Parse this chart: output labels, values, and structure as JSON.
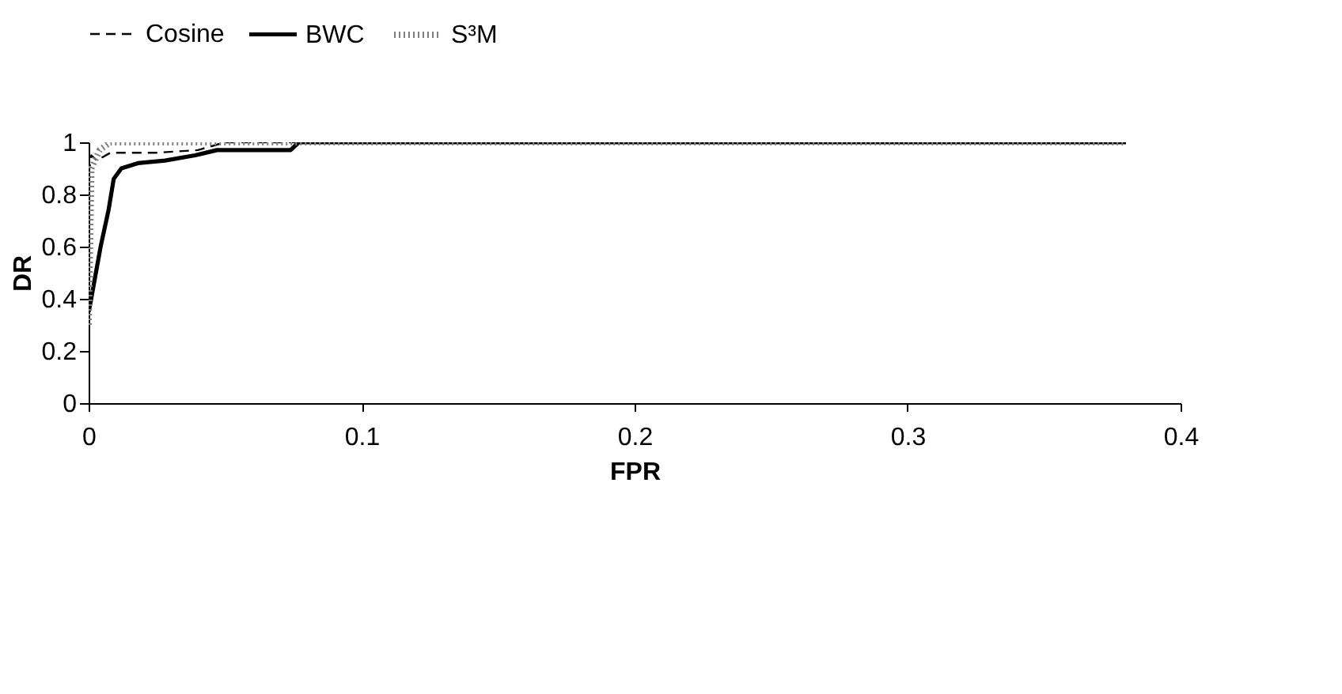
{
  "chart_data": {
    "type": "line",
    "xlabel": "FPR",
    "ylabel": "DR",
    "xlim": [
      0,
      0.4
    ],
    "xticks": [
      0,
      0.1,
      0.2,
      0.3,
      0.4
    ],
    "ylim": [
      0,
      1
    ],
    "yticks": [
      0,
      0.2,
      0.4,
      0.6,
      0.8,
      1
    ],
    "grid": false,
    "legend": "top",
    "marker": "none",
    "series": [
      {
        "name": "Cosine",
        "color": "#000000",
        "line_style": "dashed",
        "x": [
          0,
          0.001,
          0.003,
          0.008,
          0.025,
          0.04,
          0.05,
          0.38
        ],
        "values": [
          0.88,
          0.95,
          0.93,
          0.96,
          0.96,
          0.97,
          1,
          1
        ]
      },
      {
        "name": "BWC",
        "color": "#000000",
        "line_style": "solid",
        "x": [
          0,
          0.0006,
          0.0025,
          0.0044,
          0.0073,
          0.0092,
          0.012,
          0.018,
          0.028,
          0.039,
          0.047,
          0.074,
          0.077,
          0.38
        ],
        "values": [
          0.35,
          0.38,
          0.49,
          0.6,
          0.74,
          0.86,
          0.9,
          0.92,
          0.93,
          0.95,
          0.97,
          0.97,
          1,
          1
        ]
      },
      {
        "name": "S³M",
        "color": "#808080",
        "line_style": "dotted",
        "x": [
          0,
          0.0005,
          0.001,
          0.004,
          0.008,
          0.01,
          0.38
        ],
        "values": [
          0.3,
          0.6,
          0.9,
          0.97,
          1,
          1,
          1
        ]
      }
    ]
  }
}
